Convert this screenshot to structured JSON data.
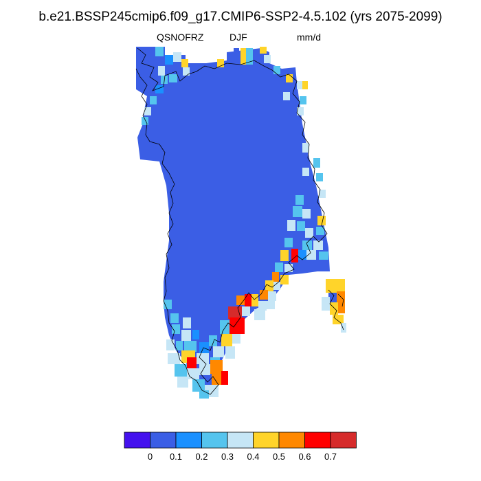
{
  "title": "b.e21.BSSP245cmip6.f09_g17.CMIP6-SSP2-4.5.102 (yrs 2075-2099)",
  "variable": "QSNOFRZ",
  "season": "DJF",
  "units": "mm/d",
  "colorbar": {
    "colors": [
      "#4411ee",
      "#3b5ee5",
      "#1a90ff",
      "#55c4ee",
      "#c6e6f6",
      "#ffd42a",
      "#ff8800",
      "#ff0000",
      "#d62b2b"
    ],
    "tick_labels": [
      "0",
      "0.1",
      "0.2",
      "0.3",
      "0.4",
      "0.5",
      "0.6",
      "0.7"
    ]
  },
  "map_colors": {
    "dominant": "#3b5ee5",
    "coast_line": "#000000"
  }
}
